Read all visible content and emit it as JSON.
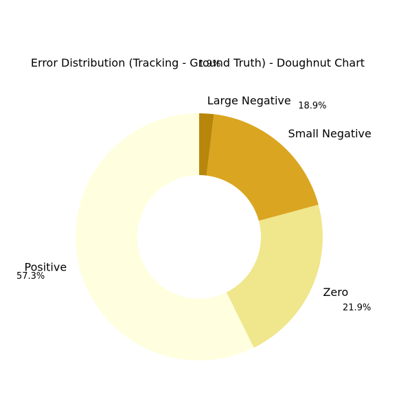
{
  "chart_data": {
    "type": "pie",
    "title": "Error Distribution (Tracking - Ground Truth) - Doughnut Chart",
    "categories": [
      "Positive",
      "Zero",
      "Small Negative",
      "Large Negative"
    ],
    "values": [
      57.3,
      21.9,
      18.9,
      1.9
    ],
    "percent_labels": [
      "57.3%",
      "21.9%",
      "18.9%",
      "1.9%"
    ],
    "colors": [
      "#FFFFE0",
      "#F0E68C",
      "#DAA520",
      "#B8860B"
    ],
    "legend": "none"
  }
}
